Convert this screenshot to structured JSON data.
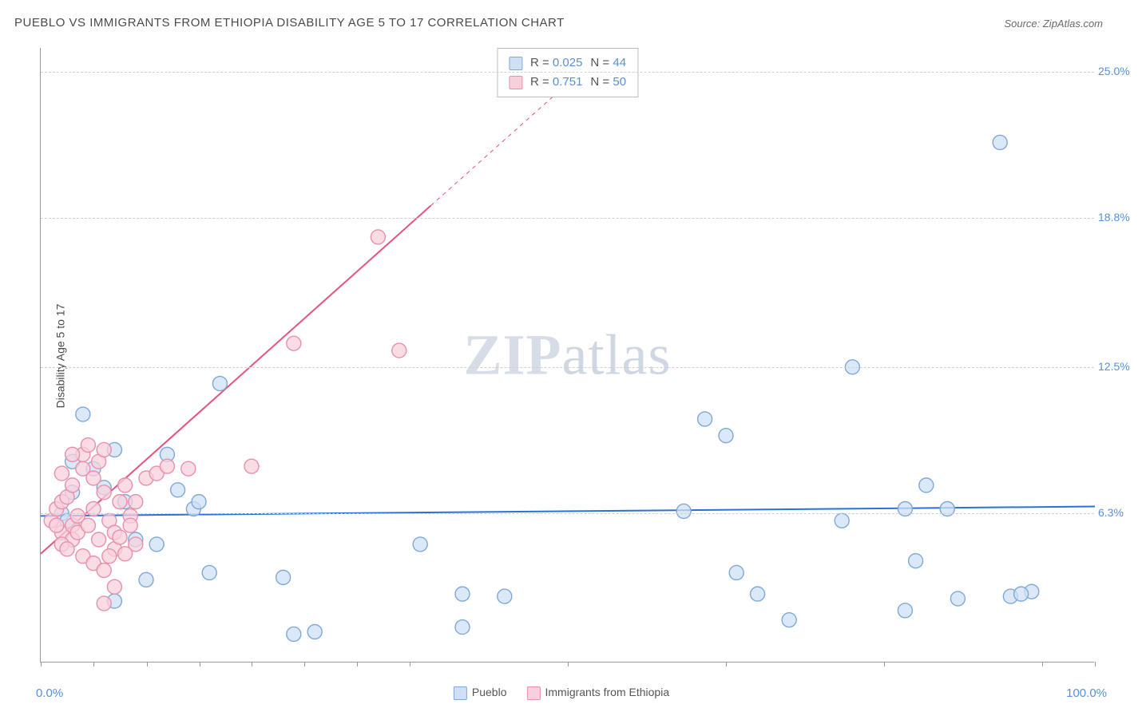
{
  "title": "PUEBLO VS IMMIGRANTS FROM ETHIOPIA DISABILITY AGE 5 TO 17 CORRELATION CHART",
  "source": "Source: ZipAtlas.com",
  "watermark_a": "ZIP",
  "watermark_b": "atlas",
  "chart": {
    "type": "scatter",
    "y_axis_label": "Disability Age 5 to 17",
    "xlim": [
      0,
      100
    ],
    "ylim": [
      0,
      26
    ],
    "x_ticks": [
      0,
      5,
      10.1,
      15.1,
      20,
      25,
      30,
      35,
      50,
      65,
      80,
      95,
      100
    ],
    "y_grid": [
      6.3,
      12.5,
      18.8,
      25.0
    ],
    "y_tick_labels": [
      "6.3%",
      "12.5%",
      "18.8%",
      "25.0%"
    ],
    "x_min_label": "0.0%",
    "x_max_label": "100.0%",
    "background_color": "#ffffff",
    "grid_color": "#d0d0d0",
    "axis_color": "#999999",
    "marker_radius": 9,
    "marker_stroke_width": 1.4,
    "regression_line_width": 2,
    "series": [
      {
        "name": "Pueblo",
        "fill": "#cfe0f5",
        "stroke": "#7fa8d8",
        "line_color": "#2a72d4",
        "line_dash_after_x": 100,
        "regression": {
          "x1": 0,
          "y1": 6.2,
          "x2": 100,
          "y2": 6.6
        },
        "points": [
          [
            2,
            6.3
          ],
          [
            3,
            7.2
          ],
          [
            3,
            8.5
          ],
          [
            4,
            10.5
          ],
          [
            2.5,
            6.0
          ],
          [
            5,
            8.2
          ],
          [
            6,
            7.4
          ],
          [
            7,
            9.0
          ],
          [
            9,
            5.2
          ],
          [
            8,
            6.8
          ],
          [
            12,
            8.8
          ],
          [
            13,
            7.3
          ],
          [
            14.5,
            6.5
          ],
          [
            15,
            6.8
          ],
          [
            17,
            11.8
          ],
          [
            10,
            3.5
          ],
          [
            7,
            2.6
          ],
          [
            11,
            5.0
          ],
          [
            16,
            3.8
          ],
          [
            23,
            3.6
          ],
          [
            24,
            1.2
          ],
          [
            26,
            1.3
          ],
          [
            36,
            5.0
          ],
          [
            40,
            2.9
          ],
          [
            40,
            1.5
          ],
          [
            44,
            2.8
          ],
          [
            63,
            10.3
          ],
          [
            65,
            9.6
          ],
          [
            61,
            6.4
          ],
          [
            66,
            3.8
          ],
          [
            68,
            2.9
          ],
          [
            71,
            1.8
          ],
          [
            76,
            6.0
          ],
          [
            77,
            12.5
          ],
          [
            82,
            6.5
          ],
          [
            84,
            7.5
          ],
          [
            82,
            2.2
          ],
          [
            83,
            4.3
          ],
          [
            87,
            2.7
          ],
          [
            86,
            6.5
          ],
          [
            91,
            22.0
          ],
          [
            92,
            2.8
          ],
          [
            94,
            3.0
          ],
          [
            93,
            2.9
          ]
        ],
        "r": "0.025",
        "n": "44"
      },
      {
        "name": "Immigrants from Ethiopia",
        "fill": "#f8d0dc",
        "stroke": "#e890ab",
        "line_color": "#e6517d",
        "line_dash_after_x": 37,
        "regression": {
          "x1": 0,
          "y1": 4.6,
          "x2": 50,
          "y2": 24.5
        },
        "points": [
          [
            1,
            6.0
          ],
          [
            1.5,
            6.5
          ],
          [
            2,
            5.5
          ],
          [
            2,
            6.8
          ],
          [
            2.5,
            7.0
          ],
          [
            3,
            5.8
          ],
          [
            3,
            7.5
          ],
          [
            3.5,
            6.2
          ],
          [
            4,
            8.2
          ],
          [
            4,
            8.8
          ],
          [
            4.5,
            9.2
          ],
          [
            5,
            7.8
          ],
          [
            5,
            6.5
          ],
          [
            5.5,
            8.5
          ],
          [
            6,
            9.0
          ],
          [
            6,
            7.2
          ],
          [
            6.5,
            6.0
          ],
          [
            7,
            5.5
          ],
          [
            7,
            4.8
          ],
          [
            7.5,
            6.8
          ],
          [
            8,
            7.5
          ],
          [
            8.5,
            6.2
          ],
          [
            9,
            5.0
          ],
          [
            4,
            4.5
          ],
          [
            5,
            4.2
          ],
          [
            6,
            3.9
          ],
          [
            7,
            3.2
          ],
          [
            8,
            4.6
          ],
          [
            6,
            2.5
          ],
          [
            3,
            5.2
          ],
          [
            2,
            5.0
          ],
          [
            1.5,
            5.8
          ],
          [
            2.5,
            4.8
          ],
          [
            3.5,
            5.5
          ],
          [
            4.5,
            5.8
          ],
          [
            5.5,
            5.2
          ],
          [
            6.5,
            4.5
          ],
          [
            7.5,
            5.3
          ],
          [
            8.5,
            5.8
          ],
          [
            9,
            6.8
          ],
          [
            10,
            7.8
          ],
          [
            11,
            8.0
          ],
          [
            12,
            8.3
          ],
          [
            14,
            8.2
          ],
          [
            20,
            8.3
          ],
          [
            24,
            13.5
          ],
          [
            32,
            18.0
          ],
          [
            34,
            13.2
          ],
          [
            2,
            8.0
          ],
          [
            3,
            8.8
          ]
        ],
        "r": "0.751",
        "n": "50"
      }
    ]
  },
  "legend_labels": {
    "r_prefix": "R =",
    "n_prefix": "N ="
  }
}
